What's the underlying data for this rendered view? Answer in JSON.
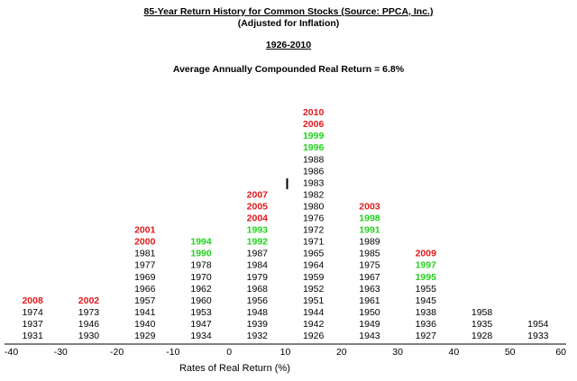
{
  "header": {
    "title": "85-Year Return History for Common Stocks (Source: PPCA, Inc.)",
    "subtitle": "(Adjusted for Inflation)",
    "period": "1926-2010",
    "average": "Average Annually Compounded Real Return = 6.8%"
  },
  "colors": {
    "normal": "#000000",
    "red": "#e0191c",
    "green": "#22d31c"
  },
  "chart_data": {
    "type": "table",
    "xlabel": "Rates of Real Return (%)",
    "xlim": [
      -40,
      60
    ],
    "x_ticks": [
      "-40",
      "-30",
      "-20",
      "-10",
      "0",
      "10",
      "20",
      "30",
      "40",
      "50",
      "60"
    ],
    "bins": [
      {
        "range": [
          -40,
          -30
        ],
        "years": [
          {
            "year": "1931",
            "color": "normal"
          },
          {
            "year": "1937",
            "color": "normal"
          },
          {
            "year": "1974",
            "color": "normal"
          },
          {
            "year": "2008",
            "color": "red"
          }
        ]
      },
      {
        "range": [
          -30,
          -20
        ],
        "years": [
          {
            "year": "1930",
            "color": "normal"
          },
          {
            "year": "1946",
            "color": "normal"
          },
          {
            "year": "1973",
            "color": "normal"
          },
          {
            "year": "2002",
            "color": "red"
          }
        ]
      },
      {
        "range": [
          -20,
          -10
        ],
        "years": [
          {
            "year": "1929",
            "color": "normal"
          },
          {
            "year": "1940",
            "color": "normal"
          },
          {
            "year": "1941",
            "color": "normal"
          },
          {
            "year": "1957",
            "color": "normal"
          },
          {
            "year": "1966",
            "color": "normal"
          },
          {
            "year": "1969",
            "color": "normal"
          },
          {
            "year": "1977",
            "color": "normal"
          },
          {
            "year": "1981",
            "color": "normal"
          },
          {
            "year": "2000",
            "color": "red"
          },
          {
            "year": "2001",
            "color": "red"
          }
        ]
      },
      {
        "range": [
          -10,
          0
        ],
        "years": [
          {
            "year": "1934",
            "color": "normal"
          },
          {
            "year": "1947",
            "color": "normal"
          },
          {
            "year": "1953",
            "color": "normal"
          },
          {
            "year": "1960",
            "color": "normal"
          },
          {
            "year": "1962",
            "color": "normal"
          },
          {
            "year": "1970",
            "color": "normal"
          },
          {
            "year": "1978",
            "color": "normal"
          },
          {
            "year": "1990",
            "color": "green"
          },
          {
            "year": "1994",
            "color": "green"
          }
        ]
      },
      {
        "range": [
          0,
          10
        ],
        "years": [
          {
            "year": "1932",
            "color": "normal"
          },
          {
            "year": "1939",
            "color": "normal"
          },
          {
            "year": "1948",
            "color": "normal"
          },
          {
            "year": "1956",
            "color": "normal"
          },
          {
            "year": "1968",
            "color": "normal"
          },
          {
            "year": "1979",
            "color": "normal"
          },
          {
            "year": "1984",
            "color": "normal"
          },
          {
            "year": "1987",
            "color": "normal"
          },
          {
            "year": "1992",
            "color": "green"
          },
          {
            "year": "1993",
            "color": "green"
          },
          {
            "year": "2004",
            "color": "red"
          },
          {
            "year": "2005",
            "color": "red"
          },
          {
            "year": "2007",
            "color": "red"
          }
        ]
      },
      {
        "range": [
          10,
          20
        ],
        "years": [
          {
            "year": "1926",
            "color": "normal"
          },
          {
            "year": "1942",
            "color": "normal"
          },
          {
            "year": "1944",
            "color": "normal"
          },
          {
            "year": "1951",
            "color": "normal"
          },
          {
            "year": "1952",
            "color": "normal"
          },
          {
            "year": "1959",
            "color": "normal"
          },
          {
            "year": "1964",
            "color": "normal"
          },
          {
            "year": "1965",
            "color": "normal"
          },
          {
            "year": "1971",
            "color": "normal"
          },
          {
            "year": "1972",
            "color": "normal"
          },
          {
            "year": "1976",
            "color": "normal"
          },
          {
            "year": "1980",
            "color": "normal"
          },
          {
            "year": "1982",
            "color": "normal"
          },
          {
            "year": "1983",
            "color": "normal"
          },
          {
            "year": "1986",
            "color": "normal"
          },
          {
            "year": "1988",
            "color": "normal"
          },
          {
            "year": "1996",
            "color": "green"
          },
          {
            "year": "1999",
            "color": "green"
          },
          {
            "year": "2006",
            "color": "red"
          },
          {
            "year": "2010",
            "color": "red"
          }
        ]
      },
      {
        "range": [
          20,
          30
        ],
        "years": [
          {
            "year": "1943",
            "color": "normal"
          },
          {
            "year": "1949",
            "color": "normal"
          },
          {
            "year": "1950",
            "color": "normal"
          },
          {
            "year": "1961",
            "color": "normal"
          },
          {
            "year": "1963",
            "color": "normal"
          },
          {
            "year": "1967",
            "color": "normal"
          },
          {
            "year": "1975",
            "color": "normal"
          },
          {
            "year": "1985",
            "color": "normal"
          },
          {
            "year": "1989",
            "color": "normal"
          },
          {
            "year": "1991",
            "color": "green"
          },
          {
            "year": "1998",
            "color": "green"
          },
          {
            "year": "2003",
            "color": "red"
          }
        ]
      },
      {
        "range": [
          30,
          40
        ],
        "years": [
          {
            "year": "1927",
            "color": "normal"
          },
          {
            "year": "1936",
            "color": "normal"
          },
          {
            "year": "1938",
            "color": "normal"
          },
          {
            "year": "1945",
            "color": "normal"
          },
          {
            "year": "1955",
            "color": "normal"
          },
          {
            "year": "1995",
            "color": "green"
          },
          {
            "year": "1997",
            "color": "green"
          },
          {
            "year": "2009",
            "color": "red"
          }
        ]
      },
      {
        "range": [
          40,
          50
        ],
        "years": [
          {
            "year": "1928",
            "color": "normal"
          },
          {
            "year": "1935",
            "color": "normal"
          },
          {
            "year": "1958",
            "color": "normal"
          }
        ]
      },
      {
        "range": [
          50,
          60
        ],
        "years": [
          {
            "year": "1933",
            "color": "normal"
          },
          {
            "year": "1954",
            "color": "normal"
          }
        ]
      }
    ]
  }
}
